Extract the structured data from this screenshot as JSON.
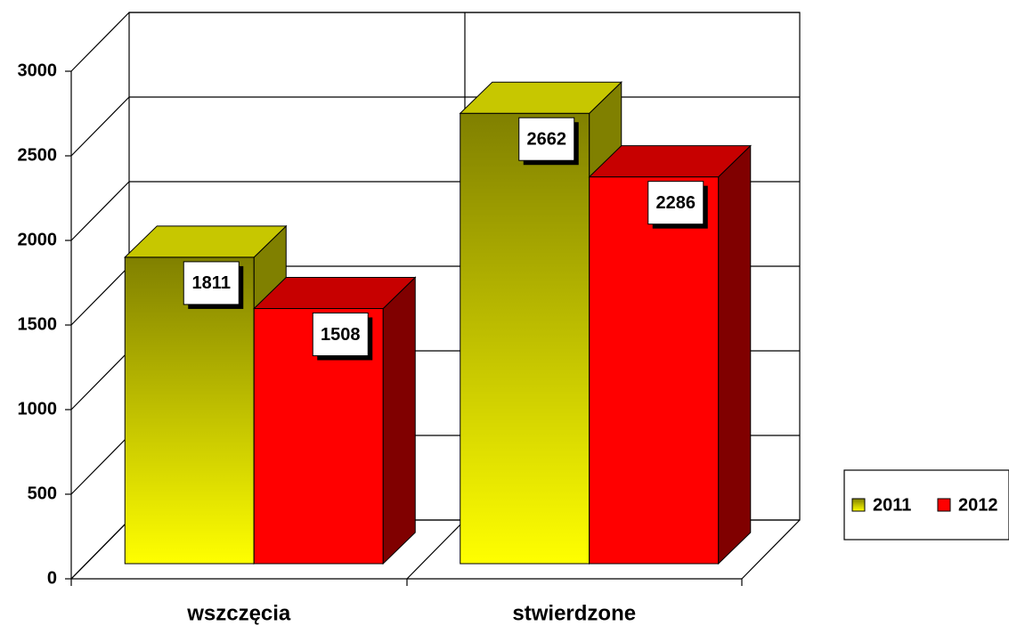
{
  "chart_data": {
    "type": "bar3d",
    "categories": [
      "wszczęcia",
      "stwierdzone"
    ],
    "series": [
      {
        "name": "2011",
        "color": "#ffff00",
        "values": [
          1811,
          2662
        ]
      },
      {
        "name": "2012",
        "color": "#ff0000",
        "values": [
          1508,
          2286
        ]
      }
    ],
    "ylim": [
      0,
      3000
    ],
    "yticks": [
      0,
      500,
      1000,
      1500,
      2000,
      2500,
      3000
    ],
    "grid": true,
    "legend": "right"
  }
}
